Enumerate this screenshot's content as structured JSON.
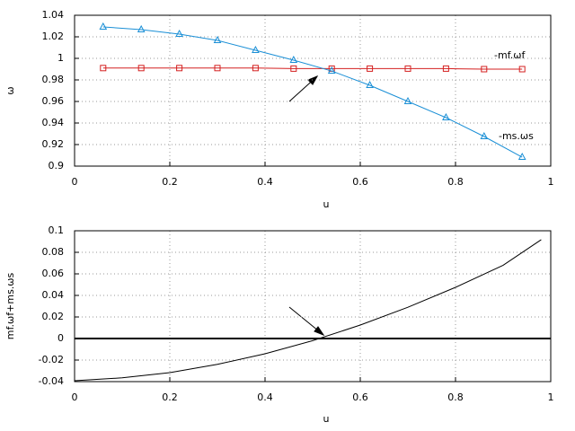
{
  "chart_data": [
    {
      "type": "line",
      "xlabel": "u",
      "ylabel": "ω",
      "x": [
        0.06,
        0.14,
        0.22,
        0.3,
        0.38,
        0.46,
        0.54,
        0.62,
        0.7,
        0.78,
        0.86,
        0.94
      ],
      "series": [
        {
          "name": "-mf.ωf",
          "color": "#d42020",
          "marker": "square",
          "values": [
            0.991,
            0.991,
            0.991,
            0.991,
            0.991,
            0.9905,
            0.9905,
            0.9905,
            0.9905,
            0.9905,
            0.99,
            0.99
          ]
        },
        {
          "name": "-ms.ωs",
          "color": "#1a8fd6",
          "marker": "triangle",
          "values": [
            1.0292,
            1.0267,
            1.0225,
            1.0167,
            1.0075,
            0.9983,
            0.9883,
            0.975,
            0.96,
            0.945,
            0.9275,
            0.9083
          ]
        }
      ],
      "xlim": [
        0,
        1
      ],
      "xticks": [
        0,
        0.2,
        0.4,
        0.6,
        0.8,
        1
      ],
      "ylim": [
        0.9,
        1.04
      ],
      "yticks": [
        0.9,
        0.92,
        0.94,
        0.96,
        0.98,
        1,
        1.02,
        1.04
      ],
      "grid": true
    },
    {
      "type": "line",
      "xlabel": "u",
      "ylabel": "mf.ωf+ms.ωs",
      "x": [
        0,
        0.1,
        0.2,
        0.3,
        0.4,
        0.5,
        0.6,
        0.7,
        0.8,
        0.9,
        0.98
      ],
      "series": [
        {
          "color": "#000000",
          "values": [
            -0.0392,
            -0.0365,
            -0.0317,
            -0.024,
            -0.0142,
            -0.002,
            0.0125,
            0.029,
            0.0475,
            0.068,
            0.0917
          ]
        }
      ],
      "xlim": [
        0,
        1
      ],
      "xticks": [
        0,
        0.2,
        0.4,
        0.6,
        0.8,
        1
      ],
      "ylim": [
        -0.04,
        0.1
      ],
      "yticks": [
        -0.04,
        -0.02,
        0,
        0.02,
        0.04,
        0.06,
        0.08,
        0.1
      ],
      "grid": true,
      "zero_line": true
    }
  ]
}
